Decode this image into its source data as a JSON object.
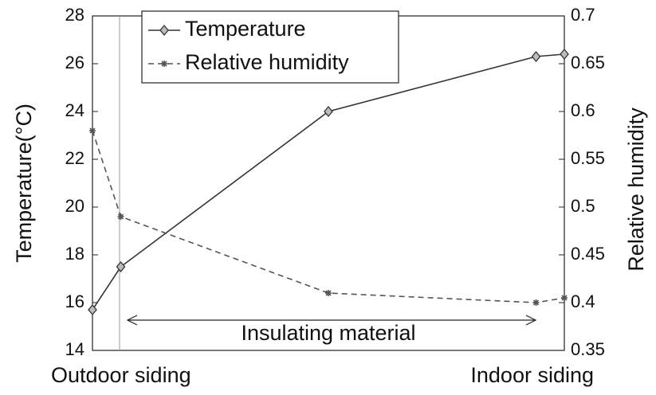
{
  "chart_data": {
    "type": "line",
    "x": [
      0,
      0.06,
      0.5,
      0.94,
      1
    ],
    "xlim": [
      0,
      1
    ],
    "x_start_label": "Outdoor siding",
    "x_end_label": "Indoor siding",
    "ylabel": "Temperature(°C)",
    "y2label": "Relative humidity",
    "ylim": [
      14,
      28
    ],
    "yticks": [
      14,
      16,
      18,
      20,
      22,
      24,
      26,
      28
    ],
    "y2lim": [
      0.35,
      0.7
    ],
    "y2ticks": [
      0.35,
      0.4,
      0.45,
      0.5,
      0.55,
      0.6,
      0.65,
      0.7
    ],
    "legend": "upper left",
    "annotation": "Insulating material",
    "series": [
      {
        "name": "Temperature",
        "color": "#333333",
        "marker": "diamond",
        "dash": "solid",
        "values": [
          15.7,
          17.5,
          24.0,
          26.3,
          26.4
        ]
      },
      {
        "name": "Relative humidity",
        "color": "#555555",
        "marker": "asterisk",
        "dash": "dashed",
        "axis": "y2",
        "values": [
          0.58,
          0.49,
          0.41,
          0.4,
          0.405
        ]
      }
    ]
  }
}
